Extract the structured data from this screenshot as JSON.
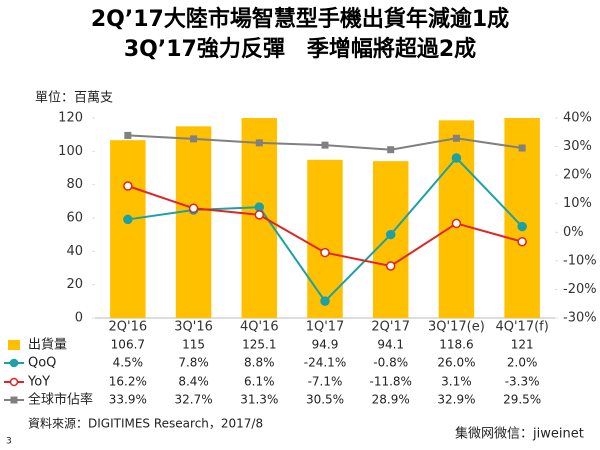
{
  "chart_data": {
    "type": "bar-line",
    "title": "2Q’17大陸市場智慧型手機出貨年減逾1成",
    "subtitle": "3Q’17強力反彈　季增幅將超過2成",
    "y_label": "單位：百萬支",
    "source": "資料來源：DIGITIMES Research，2017/8",
    "footer": "集微网微信：jiweinet",
    "page_number": "3",
    "categories": [
      "2Q'16",
      "3Q'16",
      "4Q'16",
      "1Q'17",
      "2Q'17",
      "3Q'17(e)",
      "4Q'17(f)"
    ],
    "series": [
      {
        "name": "出貨量",
        "type": "bar",
        "color": "#FFC000",
        "values": [
          106.7,
          115,
          125.1,
          94.9,
          94.1,
          118.6,
          121
        ]
      },
      {
        "name": "QoQ",
        "type": "line",
        "axis": "y2",
        "color": "#1BA1A6",
        "values": [
          4.5,
          7.8,
          8.8,
          -24.1,
          -0.8,
          26.0,
          2.0
        ],
        "value_labels": [
          "4.5%",
          "7.8%",
          "8.8%",
          "-24.1%",
          "-0.8%",
          "26.0%",
          "2.0%"
        ]
      },
      {
        "name": "YoY",
        "type": "line",
        "axis": "y2",
        "color": "#E02424",
        "values": [
          16.2,
          8.4,
          6.1,
          -7.1,
          -11.8,
          3.1,
          -3.3
        ],
        "value_labels": [
          "16.2%",
          "8.4%",
          "6.1%",
          "-7.1%",
          "-11.8%",
          "3.1%",
          "-3.3%"
        ]
      },
      {
        "name": "全球市佔率",
        "type": "line",
        "axis": "y2",
        "color": "#808080",
        "values": [
          33.9,
          32.7,
          31.3,
          30.5,
          28.9,
          32.9,
          29.5
        ],
        "value_labels": [
          "33.9%",
          "32.7%",
          "31.3%",
          "30.5%",
          "28.9%",
          "32.9%",
          "29.5%"
        ]
      }
    ],
    "ylim": [
      0,
      120
    ],
    "yticks": [
      0,
      20,
      40,
      60,
      80,
      100,
      120
    ],
    "y2lim": [
      -30,
      40
    ],
    "y2ticks": [
      {
        "value": -30,
        "label": "-30%"
      },
      {
        "value": -20,
        "label": "-20%"
      },
      {
        "value": -10,
        "label": "-10%"
      },
      {
        "value": 0,
        "label": "0%"
      },
      {
        "value": 10,
        "label": "10%"
      },
      {
        "value": 20,
        "label": "20%"
      },
      {
        "value": 30,
        "label": "30%"
      },
      {
        "value": 40,
        "label": "40%"
      }
    ]
  }
}
